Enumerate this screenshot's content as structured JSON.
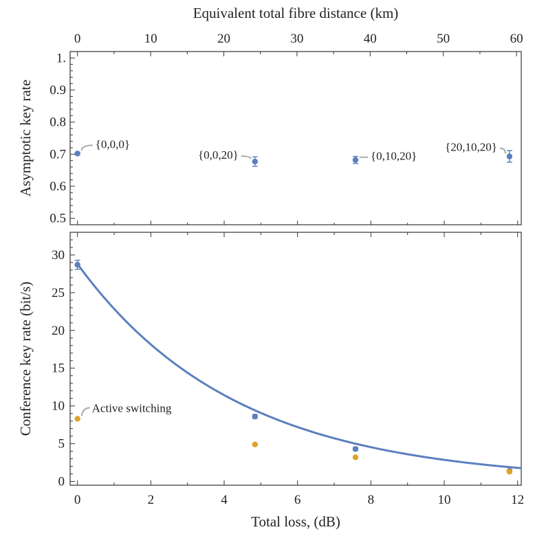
{
  "colors": {
    "blue": "#5b7fbf",
    "orange": "#e0a12b",
    "connector": "#a9a9a9",
    "frame": "#333333"
  },
  "chart_data": [
    {
      "type": "scatter",
      "panel": "top",
      "ylabel": "Asymptotic key rate",
      "x2label": "Equivalent total fibre distance (km)",
      "x2lim": [
        0,
        60
      ],
      "x2ticks": [
        "0",
        "10",
        "20",
        "30",
        "40",
        "50",
        "60"
      ],
      "xlim": [
        -0.2,
        12.1
      ],
      "ylim": [
        0.48,
        1.02
      ],
      "yticks": [
        "0.5",
        "0.6",
        "0.7",
        "0.8",
        "0.9",
        "1."
      ],
      "grid": false,
      "series": [
        {
          "color": "#5b7fbf",
          "points": [
            {
              "x": 0,
              "y": 0.702,
              "err": 0.004,
              "label": "{0,0,0}"
            },
            {
              "x": 4.84,
              "y": 0.677,
              "err": 0.015,
              "label": "{0,0,20}"
            },
            {
              "x": 7.58,
              "y": 0.682,
              "err": 0.011,
              "label": "{0,10,20}"
            },
            {
              "x": 11.78,
              "y": 0.693,
              "err": 0.018,
              "label": "{20,10,20}"
            }
          ]
        }
      ]
    },
    {
      "type": "scatter",
      "panel": "bottom",
      "xlabel": "Total loss, (dB)",
      "ylabel": "Conference key rate (bit/s)",
      "xlim": [
        -0.2,
        12.1
      ],
      "ylim": [
        -0.5,
        33
      ],
      "xticks": [
        "0",
        "2",
        "4",
        "6",
        "8",
        "10",
        "12"
      ],
      "yticks": [
        "0",
        "5",
        "10",
        "15",
        "20",
        "25",
        "30"
      ],
      "grid": false,
      "series": [
        {
          "color": "#5b7fbf",
          "points": [
            {
              "x": 0,
              "y": 28.7,
              "err": 0.6
            },
            {
              "x": 4.84,
              "y": 8.6,
              "err": 0.25
            },
            {
              "x": 7.58,
              "y": 4.3,
              "err": 0.2
            },
            {
              "x": 11.78,
              "y": 1.4,
              "err": 0.1
            }
          ]
        },
        {
          "color": "#e0a12b",
          "points": [
            {
              "x": 0,
              "y": 8.3
            },
            {
              "x": 4.84,
              "y": 4.9
            },
            {
              "x": 7.58,
              "y": 3.2
            },
            {
              "x": 11.78,
              "y": 1.3
            }
          ],
          "annotation": "Active switching"
        },
        {
          "color": "#5b7fbf",
          "kind": "fit-curve",
          "model": "exponential",
          "y0": 28.8,
          "decay_per_dB": 0.231,
          "x_range": [
            0,
            12.1
          ]
        }
      ]
    }
  ]
}
